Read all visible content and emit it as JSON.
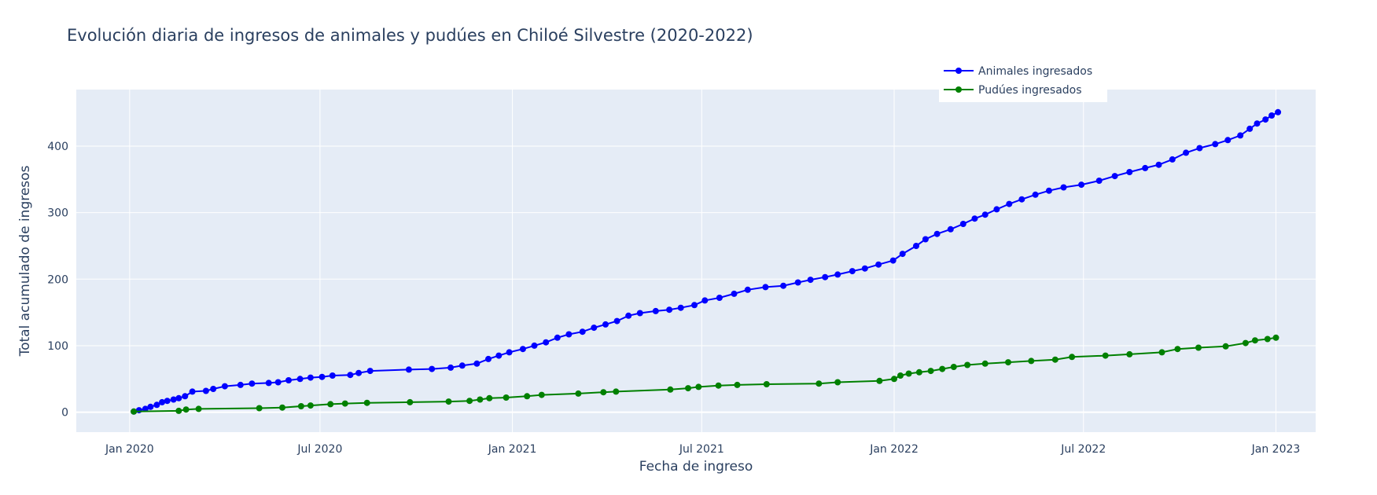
{
  "chart_data": {
    "type": "line",
    "title": "Evolución diaria de ingresos de animales y pudúes en Chiloé Silvestre (2020-2022)",
    "xlabel": "Fecha de ingreso",
    "ylabel": "Total acumulado de ingresos",
    "x_ticks": [
      {
        "label": "Jan 2020",
        "value": "2020-01-01"
      },
      {
        "label": "Jul 2020",
        "value": "2020-07-01"
      },
      {
        "label": "Jan 2021",
        "value": "2021-01-01"
      },
      {
        "label": "Jul 2021",
        "value": "2021-07-01"
      },
      {
        "label": "Jan 2022",
        "value": "2022-01-01"
      },
      {
        "label": "Jul 2022",
        "value": "2022-07-01"
      },
      {
        "label": "Jan 2023",
        "value": "2023-01-01"
      }
    ],
    "xlim": [
      "2019-11-11",
      "2023-02-08"
    ],
    "ylim": [
      -30,
      485
    ],
    "y_ticks": [
      0,
      100,
      200,
      300,
      400
    ],
    "grid": true,
    "plot_background": "#e5ecf6",
    "legend_position": "top-right",
    "series": [
      {
        "name": "Animales ingresados",
        "color": "#0000ff",
        "points": [
          [
            "2020-01-05",
            1
          ],
          [
            "2020-01-10",
            3
          ],
          [
            "2020-01-16",
            5
          ],
          [
            "2020-01-21",
            8
          ],
          [
            "2020-01-27",
            11
          ],
          [
            "2020-02-01",
            15
          ],
          [
            "2020-02-06",
            17
          ],
          [
            "2020-02-12",
            19
          ],
          [
            "2020-02-17",
            21
          ],
          [
            "2020-02-23",
            24
          ],
          [
            "2020-03-01",
            31
          ],
          [
            "2020-03-14",
            32
          ],
          [
            "2020-03-21",
            35
          ],
          [
            "2020-04-01",
            39
          ],
          [
            "2020-04-16",
            41
          ],
          [
            "2020-04-27",
            43
          ],
          [
            "2020-05-13",
            44
          ],
          [
            "2020-05-22",
            45
          ],
          [
            "2020-06-01",
            48
          ],
          [
            "2020-06-12",
            50
          ],
          [
            "2020-06-22",
            52
          ],
          [
            "2020-07-03",
            53
          ],
          [
            "2020-07-13",
            55
          ],
          [
            "2020-07-30",
            56
          ],
          [
            "2020-08-07",
            59
          ],
          [
            "2020-08-18",
            62
          ],
          [
            "2020-09-24",
            64
          ],
          [
            "2020-10-16",
            65
          ],
          [
            "2020-11-03",
            67
          ],
          [
            "2020-11-14",
            70
          ],
          [
            "2020-11-28",
            73
          ],
          [
            "2020-12-09",
            80
          ],
          [
            "2020-12-19",
            85
          ],
          [
            "2020-12-29",
            90
          ],
          [
            "2021-01-11",
            95
          ],
          [
            "2021-01-22",
            100
          ],
          [
            "2021-02-02",
            105
          ],
          [
            "2021-02-13",
            112
          ],
          [
            "2021-02-24",
            117
          ],
          [
            "2021-03-09",
            121
          ],
          [
            "2021-03-20",
            127
          ],
          [
            "2021-03-31",
            132
          ],
          [
            "2021-04-11",
            137
          ],
          [
            "2021-04-22",
            145
          ],
          [
            "2021-05-03",
            149
          ],
          [
            "2021-05-18",
            152
          ],
          [
            "2021-05-31",
            154
          ],
          [
            "2021-06-11",
            157
          ],
          [
            "2021-06-24",
            161
          ],
          [
            "2021-07-04",
            168
          ],
          [
            "2021-07-18",
            172
          ],
          [
            "2021-08-01",
            178
          ],
          [
            "2021-08-14",
            184
          ],
          [
            "2021-08-31",
            188
          ],
          [
            "2021-09-17",
            190
          ],
          [
            "2021-10-01",
            195
          ],
          [
            "2021-10-13",
            199
          ],
          [
            "2021-10-27",
            203
          ],
          [
            "2021-11-08",
            207
          ],
          [
            "2021-11-22",
            212
          ],
          [
            "2021-12-04",
            216
          ],
          [
            "2021-12-17",
            222
          ],
          [
            "2021-12-31",
            228
          ],
          [
            "2022-01-09",
            238
          ],
          [
            "2022-01-22",
            250
          ],
          [
            "2022-01-31",
            260
          ],
          [
            "2022-02-11",
            268
          ],
          [
            "2022-02-24",
            275
          ],
          [
            "2022-03-08",
            283
          ],
          [
            "2022-03-19",
            291
          ],
          [
            "2022-03-29",
            297
          ],
          [
            "2022-04-09",
            305
          ],
          [
            "2022-04-21",
            313
          ],
          [
            "2022-05-03",
            320
          ],
          [
            "2022-05-16",
            327
          ],
          [
            "2022-05-29",
            333
          ],
          [
            "2022-06-12",
            338
          ],
          [
            "2022-06-29",
            342
          ],
          [
            "2022-07-16",
            348
          ],
          [
            "2022-07-31",
            355
          ],
          [
            "2022-08-14",
            361
          ],
          [
            "2022-08-29",
            367
          ],
          [
            "2022-09-11",
            372
          ],
          [
            "2022-09-24",
            380
          ],
          [
            "2022-10-07",
            390
          ],
          [
            "2022-10-20",
            397
          ],
          [
            "2022-11-04",
            403
          ],
          [
            "2022-11-16",
            409
          ],
          [
            "2022-11-28",
            416
          ],
          [
            "2022-12-07",
            426
          ],
          [
            "2022-12-14",
            434
          ],
          [
            "2022-12-22",
            440
          ],
          [
            "2022-12-28",
            446
          ],
          [
            "2023-01-03",
            451
          ]
        ]
      },
      {
        "name": "Pudúes ingresados",
        "color": "#008000",
        "points": [
          [
            "2020-01-05",
            1
          ],
          [
            "2020-02-17",
            2
          ],
          [
            "2020-02-24",
            4
          ],
          [
            "2020-03-07",
            5
          ],
          [
            "2020-05-04",
            6
          ],
          [
            "2020-05-26",
            7
          ],
          [
            "2020-06-13",
            9
          ],
          [
            "2020-06-22",
            10
          ],
          [
            "2020-07-11",
            12
          ],
          [
            "2020-07-25",
            13
          ],
          [
            "2020-08-15",
            14
          ],
          [
            "2020-09-25",
            15
          ],
          [
            "2020-11-01",
            16
          ],
          [
            "2020-11-21",
            17
          ],
          [
            "2020-12-01",
            19
          ],
          [
            "2020-12-10",
            21
          ],
          [
            "2020-12-26",
            22
          ],
          [
            "2021-01-15",
            24
          ],
          [
            "2021-01-29",
            26
          ],
          [
            "2021-03-05",
            28
          ],
          [
            "2021-03-29",
            30
          ],
          [
            "2021-04-10",
            31
          ],
          [
            "2021-06-01",
            34
          ],
          [
            "2021-06-18",
            36
          ],
          [
            "2021-06-28",
            38
          ],
          [
            "2021-07-17",
            40
          ],
          [
            "2021-08-04",
            41
          ],
          [
            "2021-09-01",
            42
          ],
          [
            "2021-10-21",
            43
          ],
          [
            "2021-11-08",
            45
          ],
          [
            "2021-12-18",
            47
          ],
          [
            "2022-01-01",
            50
          ],
          [
            "2022-01-07",
            55
          ],
          [
            "2022-01-15",
            58
          ],
          [
            "2022-01-25",
            60
          ],
          [
            "2022-02-05",
            62
          ],
          [
            "2022-02-16",
            65
          ],
          [
            "2022-02-27",
            68
          ],
          [
            "2022-03-12",
            71
          ],
          [
            "2022-03-29",
            73
          ],
          [
            "2022-04-20",
            75
          ],
          [
            "2022-05-12",
            77
          ],
          [
            "2022-06-04",
            79
          ],
          [
            "2022-06-20",
            83
          ],
          [
            "2022-07-22",
            85
          ],
          [
            "2022-08-14",
            87
          ],
          [
            "2022-09-14",
            90
          ],
          [
            "2022-09-29",
            95
          ],
          [
            "2022-10-19",
            97
          ],
          [
            "2022-11-14",
            99
          ],
          [
            "2022-12-03",
            104
          ],
          [
            "2022-12-12",
            108
          ],
          [
            "2022-12-24",
            110
          ],
          [
            "2023-01-01",
            112
          ]
        ]
      }
    ]
  }
}
